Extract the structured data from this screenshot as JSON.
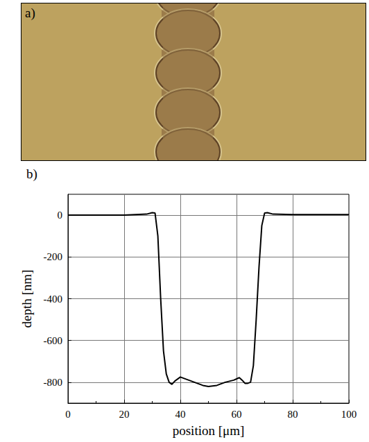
{
  "image_panel": {
    "label": "a)"
  },
  "chart_data": {
    "type": "line",
    "title": "b)",
    "x_label": "position [μm]",
    "y_label": "depth [nm]",
    "x": [
      0,
      10,
      20,
      28,
      30,
      31,
      32,
      33,
      34,
      35,
      36,
      37,
      38,
      40,
      42,
      45,
      48,
      50,
      53,
      56,
      59,
      61,
      62,
      63,
      64,
      65,
      66,
      67,
      68,
      69,
      70,
      71,
      73,
      80,
      90,
      100
    ],
    "values": [
      0,
      0,
      0,
      5,
      12,
      10,
      -100,
      -400,
      -650,
      -760,
      -800,
      -810,
      -795,
      -775,
      -785,
      -800,
      -815,
      -820,
      -815,
      -800,
      -790,
      -778,
      -790,
      -805,
      -805,
      -800,
      -720,
      -500,
      -250,
      -50,
      10,
      12,
      5,
      3,
      3,
      3
    ],
    "color": "#000000",
    "xlim": [
      0,
      100
    ],
    "xticks": [
      0,
      20,
      40,
      60,
      80,
      100
    ],
    "ylim": [
      -900,
      100
    ],
    "yticks": [
      -800,
      -600,
      -400,
      -200,
      0
    ],
    "grid": true
  }
}
